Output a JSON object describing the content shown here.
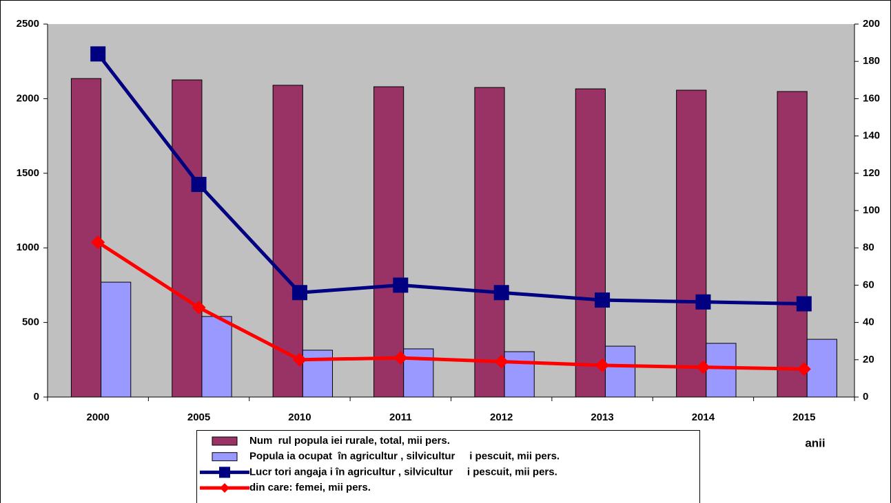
{
  "chart_data": {
    "type": "bar",
    "categories": [
      "2000",
      "2005",
      "2010",
      "2011",
      "2012",
      "2013",
      "2014",
      "2015"
    ],
    "series": [
      {
        "name": "Num  rul popula iei rurale, total, mii pers.",
        "type": "bar",
        "color": "#993366",
        "values": [
          2135,
          2126,
          2090,
          2080,
          2075,
          2066,
          2057,
          2048
        ]
      },
      {
        "name": "Popula ia ocupat  în agricultur , silvicultur     i pescuit, mii pers.",
        "type": "bar",
        "color": "#9999ff",
        "values": [
          770,
          540,
          314,
          323,
          304,
          341,
          360,
          387
        ]
      },
      {
        "name": "Lucr tori angaja i în agricultur , silvicultur     i pescuit, mii pers.",
        "type": "line",
        "axis": "y2",
        "marker": "square",
        "color": "#000080",
        "values": [
          184,
          114,
          56,
          60,
          56,
          52,
          51,
          50
        ]
      },
      {
        "name": "din care: femei, mii pers.",
        "type": "line",
        "axis": "y2",
        "marker": "diamond",
        "color": "#ff0000",
        "values": [
          83,
          48,
          20,
          21,
          19,
          17,
          16,
          15
        ]
      }
    ],
    "xlabel": "anii",
    "ylim": [
      0,
      2500
    ],
    "yticks": [
      0,
      500,
      1000,
      1500,
      2000,
      2500
    ],
    "y2lim": [
      0,
      200
    ],
    "y2ticks": [
      0,
      20,
      40,
      60,
      80,
      100,
      120,
      140,
      160,
      180,
      200
    ],
    "plot_background": "#c0c0c0"
  }
}
